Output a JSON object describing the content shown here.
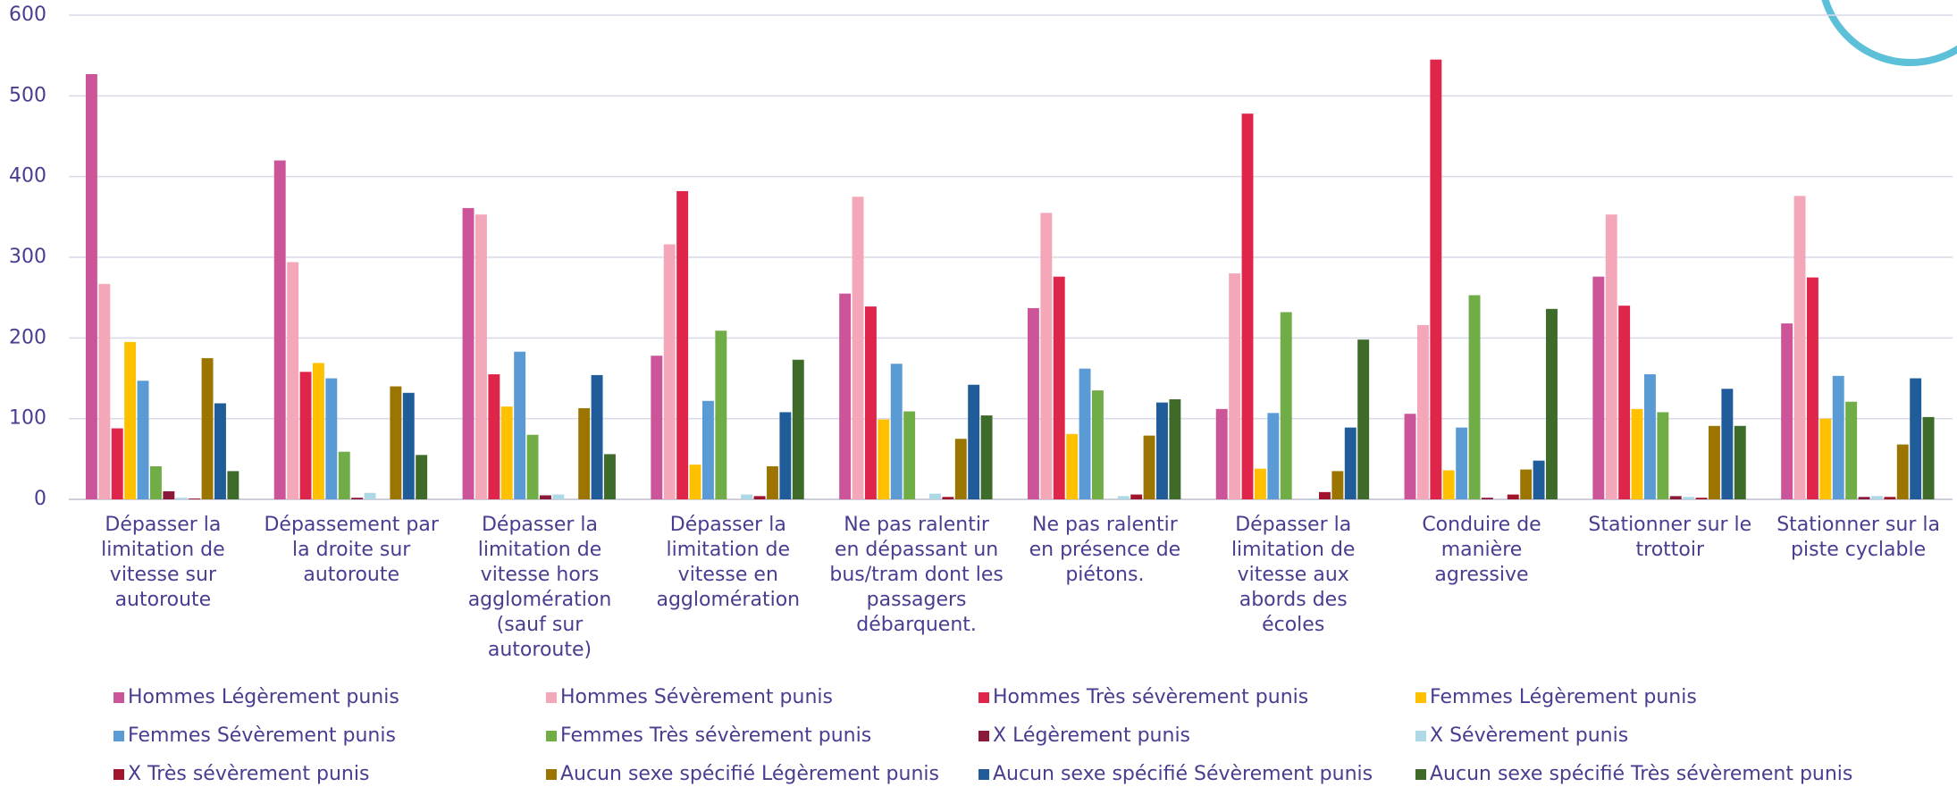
{
  "chart_data": {
    "type": "bar",
    "categories": [
      "Dépasser la limitation de vitesse sur autoroute",
      "Dépassement par la droite sur autoroute",
      "Dépasser la limitation de vitesse hors agglomération (sauf sur autoroute)",
      "Dépasser la limitation de vitesse en agglomération",
      "Ne pas ralentir en dépassant un bus/tram dont les passagers débarquent.",
      "Ne pas ralentir en présence de piétons.",
      "Dépasser la limitation de vitesse aux abords des écoles",
      "Conduire de manière agressive",
      "Stationner sur le trottoir",
      "Stationner sur la piste cyclable"
    ],
    "series": [
      {
        "name": "Hommes Légèrement punis",
        "color": "#cc5599",
        "values": [
          527,
          420,
          361,
          178,
          255,
          237,
          112,
          106,
          276,
          218
        ]
      },
      {
        "name": "Hommes Sévèrement punis",
        "color": "#f4a7b9",
        "values": [
          267,
          294,
          353,
          316,
          375,
          355,
          280,
          216,
          353,
          376
        ]
      },
      {
        "name": "Hommes Très sévèrement punis",
        "color": "#e0254a",
        "values": [
          88,
          158,
          155,
          382,
          239,
          276,
          478,
          545,
          240,
          275
        ]
      },
      {
        "name": "Femmes Légèrement punis",
        "color": "#ffc000",
        "values": [
          195,
          169,
          115,
          43,
          99,
          81,
          38,
          36,
          112,
          100
        ]
      },
      {
        "name": "Femmes Sévèrement punis",
        "color": "#5b9bd5",
        "values": [
          147,
          150,
          183,
          122,
          168,
          162,
          107,
          89,
          155,
          153
        ]
      },
      {
        "name": "Femmes Très sévèrement punis",
        "color": "#70ad47",
        "values": [
          41,
          59,
          80,
          209,
          109,
          135,
          232,
          253,
          108,
          121
        ]
      },
      {
        "name": "X Légèrement punis",
        "color": "#8b1a3a",
        "values": [
          10,
          2,
          5,
          0,
          0,
          0,
          0,
          2,
          4,
          3
        ]
      },
      {
        "name": "X Sévèrement punis",
        "color": "#add8e6",
        "values": [
          2,
          8,
          6,
          6,
          7,
          4,
          1,
          0,
          3,
          4
        ]
      },
      {
        "name": "X Très sévèrement punis",
        "color": "#a0152c",
        "values": [
          1,
          0,
          0,
          4,
          3,
          6,
          9,
          6,
          2,
          3
        ]
      },
      {
        "name": "Aucun sexe spécifié Légèrement punis",
        "color": "#9c7400",
        "values": [
          175,
          140,
          113,
          41,
          75,
          79,
          35,
          37,
          91,
          68
        ]
      },
      {
        "name": "Aucun sexe spécifié Sévèrement punis",
        "color": "#1f5c99",
        "values": [
          119,
          132,
          154,
          108,
          142,
          120,
          89,
          48,
          137,
          150
        ]
      },
      {
        "name": "Aucun sexe spécifié Très sévèrement punis",
        "color": "#3e6b2a",
        "values": [
          35,
          55,
          56,
          173,
          104,
          124,
          198,
          236,
          91,
          102
        ]
      }
    ],
    "ylim": [
      0,
      600
    ],
    "yticks": [
      0,
      100,
      200,
      300,
      400,
      500,
      600
    ],
    "grid": true
  }
}
